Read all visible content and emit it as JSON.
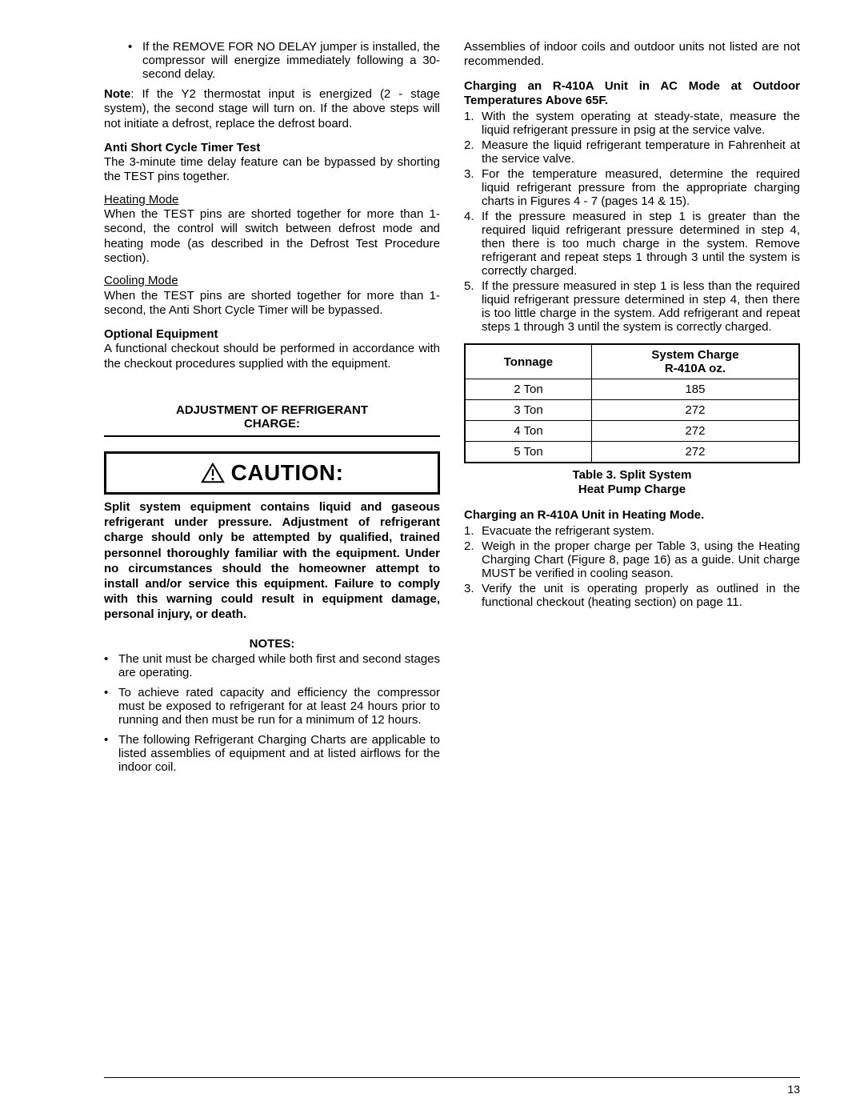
{
  "left": {
    "bullet1": "If the REMOVE FOR NO DELAY jumper is installed, the compressor will energize immediately following a 30-second delay.",
    "note_label": "Note",
    "note_body": ": If the Y2 thermostat input is energized (2 - stage system), the second stage will turn on. If the above steps will not initiate a defrost, replace the defrost board.",
    "anti_short_heading": "Anti Short Cycle Timer Test",
    "anti_short_body": "The 3-minute time delay feature can be bypassed by shorting the TEST pins together.",
    "heating_mode_label": "Heating Mode",
    "heating_mode_body": "When the TEST pins are shorted together for more than 1-second, the control will switch between defrost mode and heating mode (as described in the Defrost Test Procedure section).",
    "cooling_mode_label": "Cooling Mode",
    "cooling_mode_body": "When the TEST pins are shorted together for more than 1-second, the Anti Short Cycle Timer will be bypassed.",
    "optional_heading": "Optional Equipment",
    "optional_body": "A functional checkout should be performed in accordance with the checkout procedures supplied with the equipment.",
    "adj_heading_l1": "ADJUSTMENT OF REFRIGERANT",
    "adj_heading_l2": "CHARGE:",
    "caution_label": "CAUTION:",
    "caution_body": "Split system equipment contains liquid and gaseous refrigerant under pressure. Adjustment of refrigerant charge should only be attempted by qualified, trained personnel thoroughly familiar with the equipment. Under no circumstances should the homeowner attempt to install and/or service this equipment. Failure to comply with this warning could result in equipment damage, personal injury, or death.",
    "notes_label": "NOTES:",
    "note_items": [
      "The unit must be charged while both first and second stages are operating.",
      "To achieve rated capacity and efficiency the compressor must be exposed to refrigerant for at least 24 hours prior to running and then must be run for a minimum of 12 hours.",
      "The following Refrigerant Charging Charts are applicable to listed assemblies of equipment and at listed airflows for the indoor coil."
    ]
  },
  "right": {
    "carry_over": "Assemblies of indoor coils and outdoor units not listed are not recommended.",
    "ac_heading": "Charging an R-410A Unit in AC Mode at Outdoor Temperatures Above 65F.",
    "ac_steps": [
      "With the system operating at steady-state, measure the liquid refrigerant pressure in psig at the service valve.",
      "Measure the liquid refrigerant temperature in Fahrenheit at the service valve.",
      "For the temperature measured, determine the required liquid refrigerant pressure from the appropriate charging charts in Figures 4 - 7 (pages 14 & 15).",
      "If the pressure measured in step 1 is greater than the required liquid refrigerant pressure determined in step 4, then there is too much charge in the system. Remove refrigerant and repeat steps 1 through 3 until the system is correctly charged.",
      "If the pressure measured in step 1 is less than the required liquid refrigerant pressure determined in step 4, then there is too little charge in the system. Add refrigerant and repeat steps 1 through 3 until the system is correctly charged."
    ],
    "table": {
      "col1": "Tonnage",
      "col2_l1": "System Charge",
      "col2_l2": "R-410A oz.",
      "rows": [
        {
          "c1": "2 Ton",
          "c2": "185"
        },
        {
          "c1": "3 Ton",
          "c2": "272"
        },
        {
          "c1": "4 Ton",
          "c2": "272"
        },
        {
          "c1": "5 Ton",
          "c2": "272"
        }
      ]
    },
    "table_caption_l1": "Table 3. Split System",
    "table_caption_l2": "Heat Pump Charge",
    "heat_heading": "Charging an R-410A Unit in Heating Mode.",
    "heat_steps": [
      "Evacuate the refrigerant system.",
      "Weigh in the proper charge per Table 3, using the Heating Charging Chart (Figure 8, page 16) as a guide. Unit charge MUST be verified in cooling season.",
      "Verify the unit is operating properly as outlined in the functional checkout (heating section) on page 11."
    ]
  },
  "page_number": "13"
}
